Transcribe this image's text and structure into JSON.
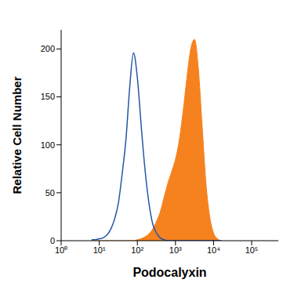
{
  "chart_data": {
    "type": "area",
    "log": "x",
    "x_label": "Podocalyxin",
    "y_label": "Relative Cell Number",
    "xlim": [
      1,
      500000
    ],
    "xticks": [
      {
        "value": 1,
        "label": "10⁰"
      },
      {
        "value": 10,
        "label": "10¹"
      },
      {
        "value": 100,
        "label": "10²"
      },
      {
        "value": 1000,
        "label": "10³"
      },
      {
        "value": 10000,
        "label": "10⁴"
      },
      {
        "value": 100000,
        "label": "10⁵"
      }
    ],
    "ylim": [
      0,
      220
    ],
    "yticks": [
      0,
      50,
      100,
      150,
      200
    ],
    "x": [
      6.3,
      7.9,
      10,
      12.6,
      15.8,
      20,
      25,
      32,
      40,
      50,
      63,
      79,
      100,
      126,
      158,
      200,
      251,
      316,
      398,
      501,
      631,
      794,
      1000,
      1259,
      1585,
      1995,
      2512,
      3162,
      3981,
      5012,
      6310,
      7943,
      10000,
      12589,
      15849
    ],
    "series": [
      {
        "type": "line",
        "color": "#2456a6",
        "values": [
          1,
          1,
          2,
          3,
          6,
          12,
          22,
          40,
          70,
          105,
          160,
          196,
          170,
          120,
          75,
          40,
          18,
          8,
          3,
          1,
          0,
          0,
          0,
          0,
          0,
          0,
          0,
          0,
          0,
          0,
          0,
          0,
          0,
          0,
          0
        ]
      },
      {
        "type": "area",
        "color": "#f5821f",
        "values": [
          0,
          0,
          0,
          0,
          0,
          0,
          0,
          0,
          0,
          0,
          0,
          0,
          1,
          2,
          4,
          7,
          12,
          20,
          30,
          45,
          60,
          72,
          85,
          105,
          135,
          170,
          200,
          210,
          180,
          120,
          60,
          25,
          8,
          2,
          0
        ]
      }
    ]
  }
}
